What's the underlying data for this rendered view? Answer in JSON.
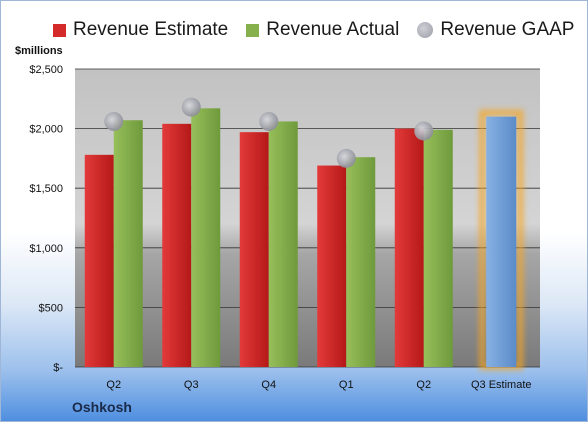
{
  "chart_data": {
    "type": "bar",
    "ylabel": "$millions",
    "categories": [
      "Q2",
      "Q3",
      "Q4",
      "Q1",
      "Q2",
      "Q3 Estimate"
    ],
    "series": [
      {
        "name": "Revenue Estimate",
        "color": "#d42a2a",
        "values": [
          1780,
          2040,
          1970,
          1690,
          2000,
          null
        ]
      },
      {
        "name": "Revenue Actual",
        "color": "#86b04c",
        "values": [
          2070,
          2170,
          2060,
          1760,
          1990,
          null
        ]
      },
      {
        "name": "Revenue GAAP",
        "color": "#a6a7b0",
        "values": [
          2060,
          2180,
          2060,
          1750,
          1980,
          null
        ]
      }
    ],
    "estimate": {
      "category_index": 5,
      "value": 2100,
      "color": "#6f9fd8",
      "glow_color": "#f5a623"
    },
    "ylim": [
      0,
      2500
    ],
    "yticks": [
      0,
      500,
      1000,
      1500,
      2000,
      2500
    ],
    "ytick_labels": [
      "$-",
      "$500",
      "$1,000",
      "$1,500",
      "$2,000",
      "$2,500"
    ],
    "grid": true,
    "legend_position": "top"
  },
  "company": "Oshkosh"
}
